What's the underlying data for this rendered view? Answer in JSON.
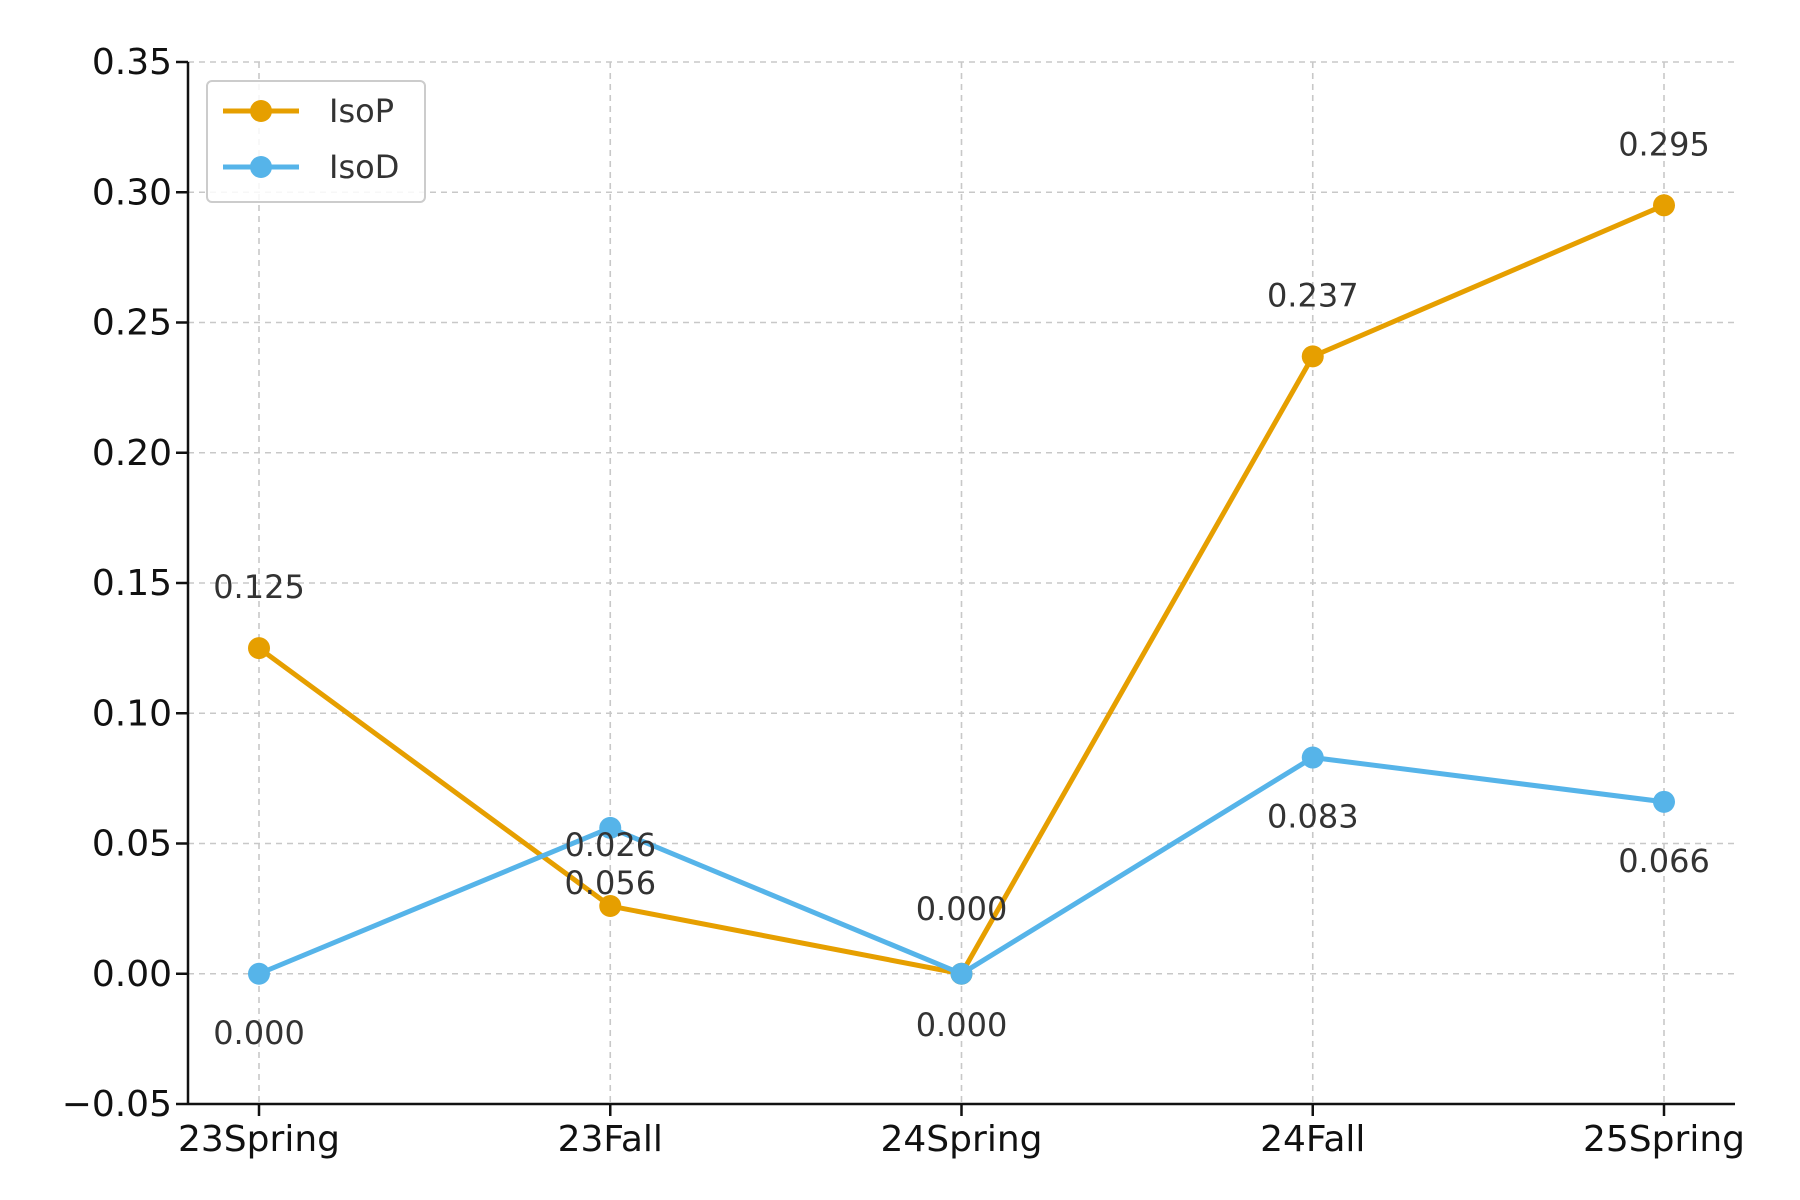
{
  "chart_data": {
    "type": "line",
    "title": "",
    "xlabel": "",
    "ylabel": "",
    "categories": [
      "23Spring",
      "23Fall",
      "24Spring",
      "24Fall",
      "25Spring"
    ],
    "ylim": [
      -0.05,
      0.35
    ],
    "yticks": [
      "−0.05",
      "0.00",
      "0.05",
      "0.10",
      "0.15",
      "0.20",
      "0.25",
      "0.30",
      "0.35"
    ],
    "grid": true,
    "legend_position": "top-left",
    "series": [
      {
        "name": "IsoP",
        "color": "#E69F00",
        "values": [
          0.125,
          0.026,
          0.0,
          0.237,
          0.295
        ],
        "labels": [
          "0.125",
          "0.026",
          "0.000",
          "0.237",
          "0.295"
        ]
      },
      {
        "name": "IsoD",
        "color": "#56B4E9",
        "values": [
          0.0,
          0.056,
          0.0,
          0.083,
          0.066
        ],
        "labels": [
          "0.000",
          "0.056",
          "0.000",
          "0.083",
          "0.066"
        ]
      }
    ]
  }
}
